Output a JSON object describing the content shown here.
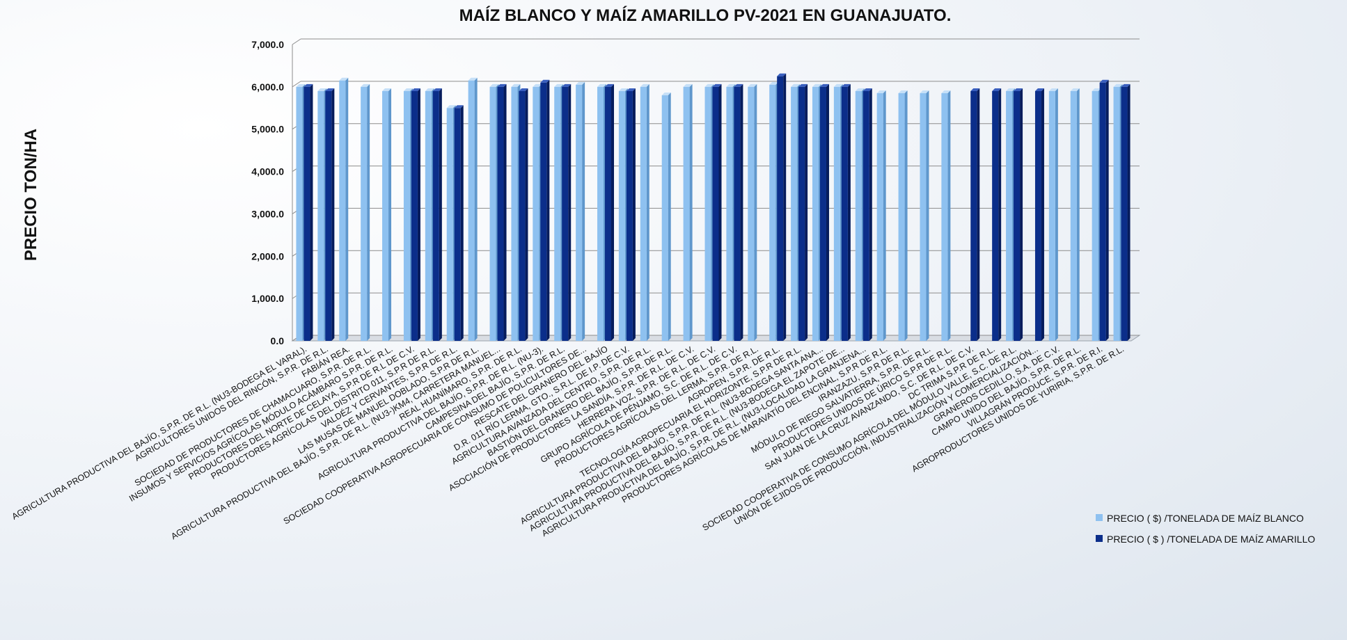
{
  "chart_data": {
    "type": "bar",
    "title": "MAÍZ BLANCO Y MAÍZ AMARILLO PV-2021 EN GUANAJUATO.",
    "xlabel": "",
    "ylabel": "PRECIO TON/HA",
    "ylim": [
      0,
      7000
    ],
    "yticks": [
      "0.0",
      "1,000.0",
      "2,000.0",
      "3,000.0",
      "4,000.0",
      "5,000.0",
      "6,000.0",
      "7,000.0"
    ],
    "grid": true,
    "legend_position": "bottom-right",
    "colors": {
      "blanco": "#8ec1f0",
      "amarillo": "#0b2e8a"
    },
    "categories": [
      "AGRICULTURA PRODUCTIVA DEL BAJÍO, S.P.R. DE R.L. (NU3-BODEGA EL VARAL).",
      "AGRICULTORES UNIDOS DEL RINCÓN,  S.P.R. DE R.L.",
      "FABIÁN REA.",
      "SOCIEDAD DE PRODUCTORES DE CHAMACUARO, S.P.R. DE R.L.",
      "INSUMOS Y SERVICIOS AGRÍCOLAS MÓDULO ACÁMBARO S.P.R. DE R.L.",
      "PRODUCTORES DEL NORTE DE CELAYA, S.P.R DE R.L DE C.V.",
      "PRODUCTORES AGRÍCOLAS DEL DISTRITO 011, S.P.R DE R.L.",
      "VALDÉZ Y CERVANTES, S.P.R DE R.L.",
      "LAS MUSAS DE MANUEL DOBLADO, S.P.R DE R.L.",
      "AGRICULTURA PRODUCTIVA DEL BAJÍO, S.P.R. DE R.L. (NU3-)KM4, CARRETERA MANUEL...",
      "REAL HUANÍMARO, S.P.R. DE R.L.",
      "AGRICULTURA PRODUCTIVA DEL BAJÍO, S.P.R. DE R.L. (NU-3).",
      "CAMPESINA DEL BAJÍO, S.P.R. DE R.L.",
      "SOCIEDAD COOPERATIVA AGROPECUARIA DE CONSUMO DE POLICULTORES DE...",
      "RESCATE DEL GRANERO DEL BAJÍO",
      "D.R. 011 RÍO LERMA, GTO., S.R.L. DE I.P. DE C.V.",
      "AGRICULTURA AVANZADA DEL CENTRO, S.P.R. DE R.L.",
      "BASTIÓN DEL GRANERO DEL BAJÍO, S.P.R. DE R.L.",
      "ASOCIACIÓN DE PRODUCTORES  LA SANDÍA, S.P.R. DE R.L. DE C.V.",
      "HERRERA VOZ, S.P.R. DE R.L. DE C.V.",
      "GRUPO AGRÍCOLA DE PÉNJAMO, S.C. DE R.L. DE C.V.",
      "PRODUCTORES AGRÍCOLAS DEL LERMA, S.P.R. DE R.L.",
      "AGROPEN, S.P.R. DE R.L.",
      "TECNOLOGÍA AGROPECUARIA EL HORIZONTE, S.P.R DE R.L.",
      "AGRICULTURA PRODUCTIVA DEL BAJÍO, S.P.R. DE R.L. (NU3-BODEGA SANTA ANA...",
      "AGRICULTURA PRODUCTIVA DEL BAJÍO, S.P.R. DE R.L. (NU3-BODEGA EL ZAPOTE DE...",
      "AGRICULTURA PRODUCTIVA DEL BAJÍO, S.P.R. DE R.L. (NU3-LOCALIDAD LA GRANJENA...",
      "PRODUCTORES AGRÍCOLAS DE MARAVATÍO DEL ENCINAL, S.P.R DE R.L.",
      "IRANZAZU, S.P.R DE R.L.",
      "MÓDULO DE RIEGO SALVATIERRA, S.P.R. DE R.L.",
      "PRODUCTORES UNIDOS DE ÚRICO S.P.R DE R.L.",
      "SAN JUAN DE LA CRUZ AVANZANDO, S.C. DE R.L. DE C.V.",
      "DC TRIMA S.P.R DE R.L.",
      "SOCIEDAD COOPERATIVA DE CONSUMO AGRÍCOLA DEL MÓDULO VALLE, S.C. DE R.L.",
      "UNIÓN DE EJIDOS DE PRODUCCIÓN, INDUSTRIALIZACIÓN Y COMERCIALIZACIÓN...",
      "GRANEROS CEDILLO, S.A. DE C.V.",
      "CAMPO UNIDO DEL BAJÍO, S.P.R. DE R.L.",
      "VILLAGRÁN PRODUCE, S.P.R. DE R.I.",
      "AGROPRODUCTORES UNIDOS DE YURIRIA,  S.P.R. DE R.L."
    ],
    "series": [
      {
        "name": "PRECIO ( $) /TONELADA DE MAÍZ BLANCO",
        "values": [
          6000,
          5900,
          6150,
          6000,
          5900,
          5900,
          5900,
          5500,
          6150,
          6000,
          6000,
          6000,
          6000,
          6050,
          6000,
          5900,
          6000,
          5800,
          6000,
          6000,
          6000,
          6000,
          6050,
          6000,
          6000,
          6000,
          5900,
          5850,
          5850,
          5850,
          5850,
          0,
          0,
          5900,
          0,
          5900,
          5900,
          5900,
          6000
        ]
      },
      {
        "name": "PRECIO ( $ ) /TONELADA DE MAÍZ AMARILLO",
        "values": [
          6000,
          5900,
          0,
          0,
          0,
          5900,
          5900,
          5500,
          0,
          6000,
          5900,
          6100,
          6000,
          0,
          6000,
          5900,
          0,
          0,
          0,
          6000,
          6000,
          0,
          6250,
          6000,
          6000,
          6000,
          5900,
          0,
          0,
          0,
          0,
          5900,
          5900,
          5900,
          5900,
          0,
          0,
          6100,
          6000
        ]
      }
    ]
  }
}
